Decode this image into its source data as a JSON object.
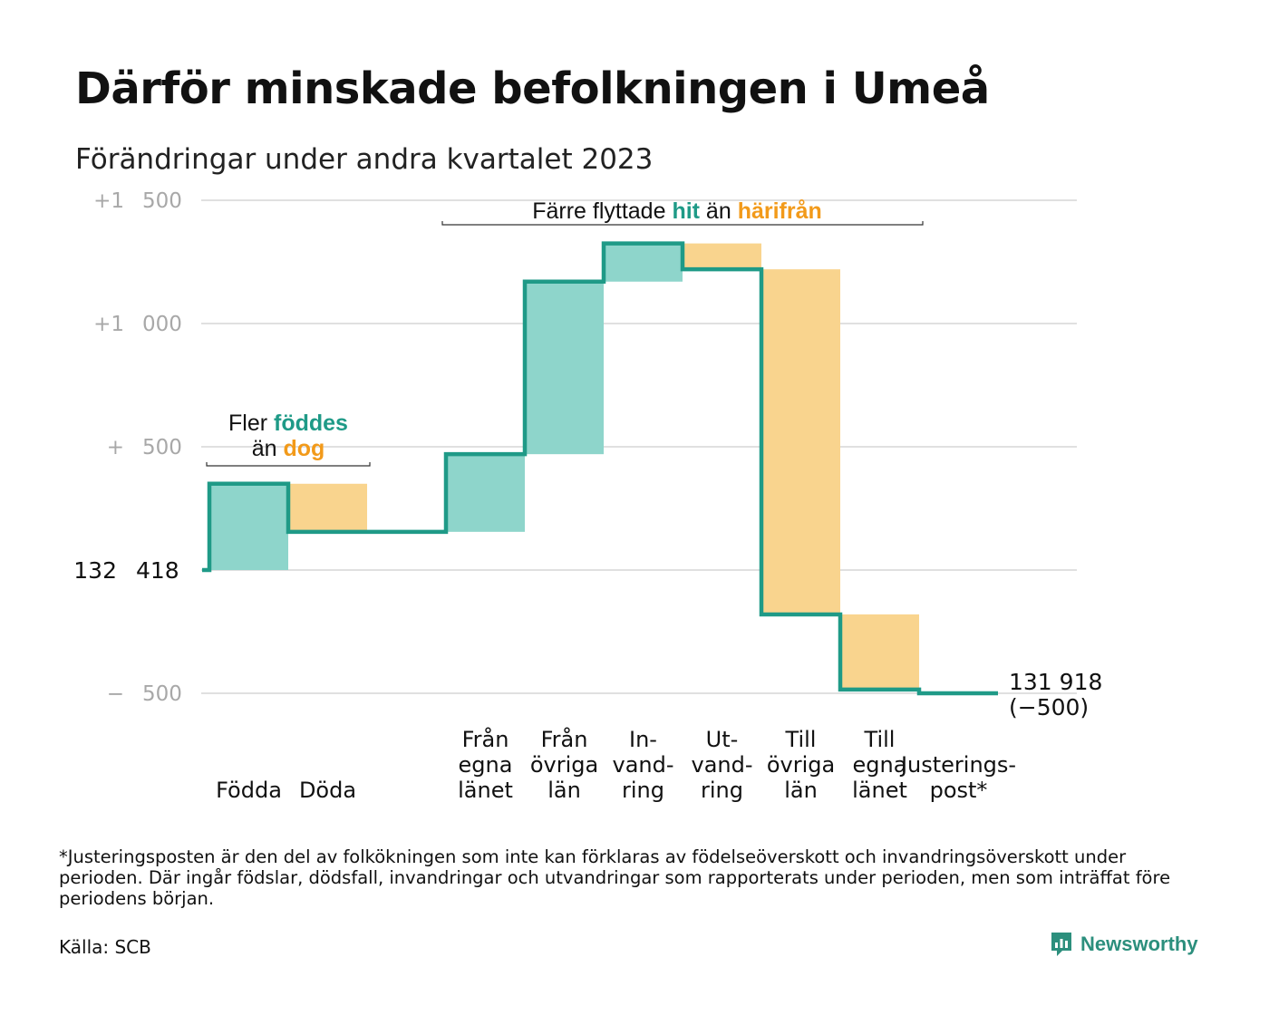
{
  "title": "Därför minskade befolkningen i Umeå",
  "subtitle": "Förändringar under andra kvartalet 2023",
  "colors": {
    "increase": "#8ed5cb",
    "decrease": "#f9d48e",
    "line": "#1f9a87",
    "grid": "#e0e0e0",
    "tick": "#a8a8a8",
    "teal_text": "#1f9a87",
    "orange_text": "#f29a1a"
  },
  "chart_data": {
    "type": "waterfall",
    "start_value": 132418,
    "start_label": "132 418",
    "end_label": "131 918",
    "end_change_label": "(−500)",
    "y_ticks": [
      {
        "value": 1500,
        "label": "+1 500"
      },
      {
        "value": 1000,
        "label": "+1 000"
      },
      {
        "value": 500,
        "label": "+ 500"
      },
      {
        "value": -500,
        "label": "− 500"
      }
    ],
    "ylim": [
      -500,
      1500
    ],
    "steps": [
      {
        "category": "Födda",
        "label_lines": [
          "Födda"
        ],
        "value": 350,
        "kind": "increase"
      },
      {
        "category": "Döda",
        "label_lines": [
          "Döda"
        ],
        "value": -195,
        "kind": "decrease"
      },
      {
        "category": "",
        "label_lines": [],
        "value": 0,
        "kind": "none"
      },
      {
        "category": "Från egna länet",
        "label_lines": [
          "Från",
          "egna",
          "länet"
        ],
        "value": 315,
        "kind": "increase"
      },
      {
        "category": "Från övriga län",
        "label_lines": [
          "Från",
          "övriga",
          "län"
        ],
        "value": 700,
        "kind": "increase"
      },
      {
        "category": "Invandring",
        "label_lines": [
          "In-",
          "vand-",
          "ring"
        ],
        "value": 155,
        "kind": "increase"
      },
      {
        "category": "Utvandring",
        "label_lines": [
          "Ut-",
          "vand-",
          "ring"
        ],
        "value": -105,
        "kind": "decrease"
      },
      {
        "category": "Till övriga län",
        "label_lines": [
          "Till",
          "övriga",
          "län"
        ],
        "value": -1400,
        "kind": "decrease"
      },
      {
        "category": "Till egna länet",
        "label_lines": [
          "Till",
          "egna",
          "länet"
        ],
        "value": -305,
        "kind": "decrease"
      },
      {
        "category": "Justeringspost*",
        "label_lines": [
          "Justerings-",
          "post*"
        ],
        "value": -15,
        "kind": "adjustment"
      }
    ],
    "annotations": [
      {
        "id": "births",
        "lines": [
          [
            {
              "text": "Fler ",
              "color": "plain"
            },
            {
              "text": "föddes",
              "color": "teal"
            }
          ],
          [
            {
              "text": "än ",
              "color": "plain"
            },
            {
              "text": "dog",
              "color": "orange"
            }
          ]
        ]
      },
      {
        "id": "moves",
        "lines": [
          [
            {
              "text": "Färre flyttade ",
              "color": "plain"
            },
            {
              "text": "hit",
              "color": "teal"
            },
            {
              "text": "  än ",
              "color": "plain"
            },
            {
              "text": "härifrån",
              "color": "orange"
            }
          ]
        ]
      }
    ]
  },
  "footnote": "*Justeringsposten är den del av folkökningen som inte kan förklaras av födelseöverskott och invandringsöverskott under perioden. Där ingår födslar, dödsfall, invandringar och utvandringar som rapporterats under perioden, men som inträffat före periodens början.",
  "source": "Källa: SCB",
  "brand": {
    "name": "Newsworthy",
    "icon": "newsworthy-logo-icon"
  }
}
